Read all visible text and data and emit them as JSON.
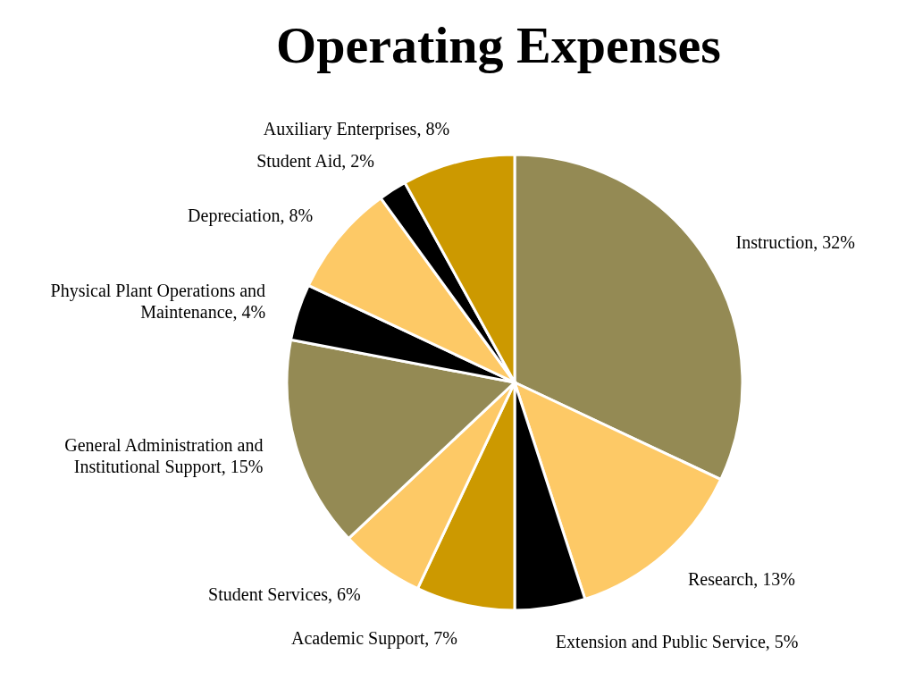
{
  "chart_data": {
    "type": "pie",
    "title": "Operating Expenses",
    "categories": [
      "Instruction",
      "Research",
      "Extension and Public Service",
      "Academic Support",
      "Student Services",
      "General Administration and Institutional Support",
      "Physical Plant Operations and Maintenance",
      "Depreciation",
      "Student Aid",
      "Auxiliary Enterprises"
    ],
    "values": [
      32,
      13,
      5,
      7,
      6,
      15,
      4,
      8,
      2,
      8
    ],
    "value_labels": [
      "32%",
      "13%",
      "5%",
      "7%",
      "6%",
      "15%",
      "4%",
      "8%",
      "2%",
      "8%"
    ],
    "colors": [
      "#948a54",
      "#fdc966",
      "#000000",
      "#cc9900",
      "#fdc966",
      "#948a54",
      "#000000",
      "#fdc966",
      "#000000",
      "#cc9900"
    ]
  }
}
